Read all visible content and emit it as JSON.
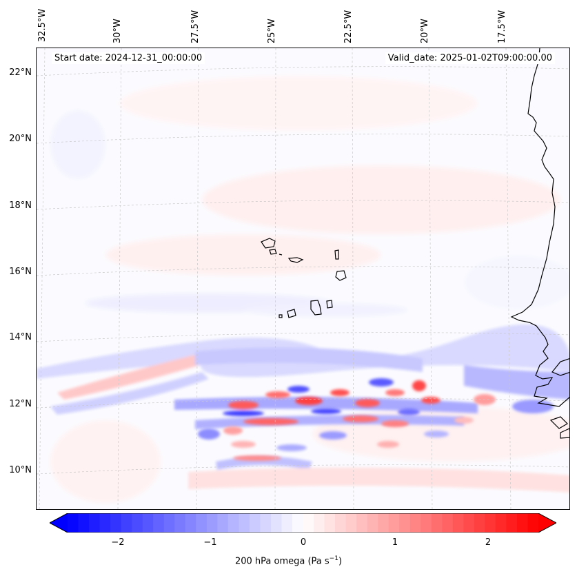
{
  "map": {
    "start_date": "Start date: 2024-12-31_00:00:00",
    "valid_date": "Valid_date: 2025-01-02T09:00:00.00",
    "lon_labels": [
      "32.5°W",
      "30°W",
      "27.5°W",
      "25°W",
      "22.5°W",
      "20°W",
      "17.5°W"
    ],
    "lat_labels": [
      "22°N",
      "20°N",
      "18°N",
      "16°N",
      "14°N",
      "12°N",
      "10°N"
    ],
    "field": "200 hPa omega",
    "region": "Cape Verde / West Africa coast"
  },
  "colorbar": {
    "ticks": [
      "−2",
      "−1",
      "0",
      "1",
      "2"
    ],
    "label_main": "200 hPa omega (Pa s",
    "label_sup": "−1",
    "label_end": ")",
    "vmin": -2.75,
    "vmax": 2.75,
    "colors": {
      "negative": "#0000ff",
      "zero": "#ffffff",
      "positive": "#ff0000"
    }
  }
}
